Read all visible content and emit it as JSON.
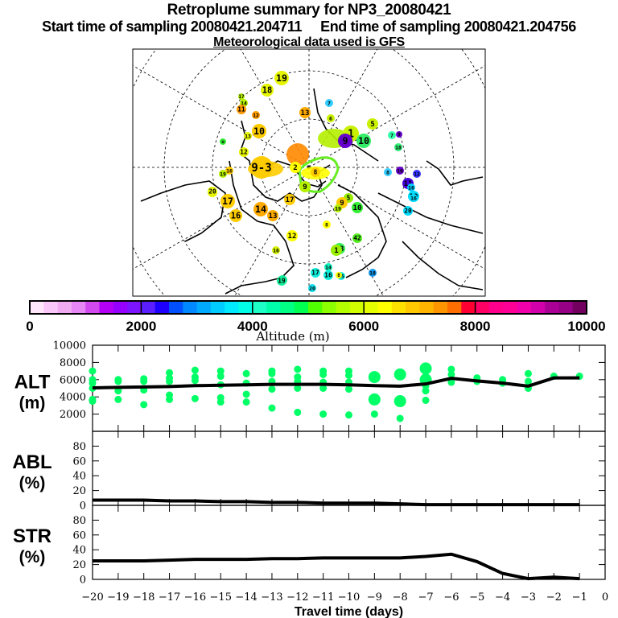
{
  "header": {
    "title": "Retroplume summary for NP3_20080421",
    "subtitle": "Start time of sampling 20080421.204711     End time of sampling 20080421.204756",
    "met_line": "Meteorological data used is GFS"
  },
  "map": {
    "description": "North polar stereographic map with retroplume cluster positions labelled by travel day, colored by altitude",
    "clusters": [
      {
        "label": "19",
        "lon_lat_hint": "N Canada",
        "color": "#e6f500",
        "alt_m": 5800
      },
      {
        "label": "18",
        "color": "#e6f500",
        "alt_m": 5800
      },
      {
        "label": "17",
        "color": "#b4f000",
        "alt_m": 5500
      },
      {
        "label": "14",
        "color": "#b4f000",
        "alt_m": 5500
      },
      {
        "label": "11",
        "color": "#ff9900",
        "alt_m": 7100
      },
      {
        "label": "12",
        "color": "#ff9900",
        "alt_m": 7100
      },
      {
        "label": "13",
        "color": "#ffaa00",
        "alt_m": 7000
      },
      {
        "label": "7",
        "color": "#33ccff",
        "alt_m": 3700
      },
      {
        "label": "6",
        "color": "#c8f000",
        "alt_m": 5700
      },
      {
        "label": "5",
        "color": "#c8f000",
        "alt_m": 5700
      },
      {
        "label": "1",
        "color": "#c8f000",
        "alt_m": 5700
      },
      {
        "label": "10",
        "color": "#33ee66",
        "alt_m": 4700
      },
      {
        "label": "9",
        "color": "#6600cc",
        "alt_m": 1500
      },
      {
        "label": "7",
        "color": "#33ffaa",
        "alt_m": 4300
      },
      {
        "label": "9",
        "color": "#6600cc",
        "alt_m": 1500
      },
      {
        "label": "18",
        "color": "#33ee77",
        "alt_m": 4700
      },
      {
        "label": "8",
        "color": "#33ccff",
        "alt_m": 3700
      },
      {
        "label": "10",
        "color": "#6600cc",
        "alt_m": 1500
      },
      {
        "label": "12",
        "color": "#3333ff",
        "alt_m": 2300
      },
      {
        "label": "11",
        "color": "#4400dd",
        "alt_m": 2000
      },
      {
        "label": "16",
        "color": "#00ccff",
        "alt_m": 3500
      },
      {
        "label": "19",
        "color": "#00ddff",
        "alt_m": 3700
      },
      {
        "label": "16",
        "color": "#00ddff",
        "alt_m": 3700
      },
      {
        "label": "20",
        "color": "#00ddff",
        "alt_m": 3700
      },
      {
        "label": "13",
        "color": "#e6f500",
        "alt_m": 5800
      },
      {
        "label": "10",
        "color": "#ffcc00",
        "alt_m": 6300
      },
      {
        "label": "u",
        "color": "#33ee33",
        "alt_m": 5000
      },
      {
        "label": "12",
        "color": "#e6f500",
        "alt_m": 5800
      },
      {
        "label": "9-3",
        "color": "#ffcc00",
        "alt_m": 6300
      },
      {
        "label": "20",
        "color": "#e6f500",
        "alt_m": 5800
      },
      {
        "label": "2",
        "color": "#ffff00",
        "alt_m": 6000
      },
      {
        "label": "8",
        "color": "#ffcc00",
        "alt_m": 6300
      },
      {
        "label": "9",
        "color": "#b4f000",
        "alt_m": 5500
      },
      {
        "label": "16",
        "color": "#ffcc00",
        "alt_m": 6300
      },
      {
        "label": "19",
        "color": "#b4f000",
        "alt_m": 5500
      },
      {
        "label": "20",
        "color": "#e6f500",
        "alt_m": 5800
      },
      {
        "label": "17",
        "color": "#ffcc00",
        "alt_m": 6300
      },
      {
        "label": "16",
        "color": "#ffcc00",
        "alt_m": 6300
      },
      {
        "label": "14",
        "color": "#ffaa00",
        "alt_m": 6700
      },
      {
        "label": "13",
        "color": "#ffaa00",
        "alt_m": 6700
      },
      {
        "label": "17",
        "color": "#ffcc00",
        "alt_m": 6300
      },
      {
        "label": "12",
        "color": "#ffff00",
        "alt_m": 6000
      },
      {
        "label": "16",
        "color": "#d2f000",
        "alt_m": 5700
      },
      {
        "label": "19",
        "color": "#11ee99",
        "alt_m": 4300
      },
      {
        "label": "5",
        "color": "#99ee00",
        "alt_m": 5300
      },
      {
        "label": "9",
        "color": "#ffcc00",
        "alt_m": 6300
      },
      {
        "label": "19",
        "color": "#b4f000",
        "alt_m": 5500
      },
      {
        "label": "10",
        "color": "#33ee33",
        "alt_m": 5000
      },
      {
        "label": "8",
        "color": "#ffff00",
        "alt_m": 6000
      },
      {
        "label": "42",
        "color": "#55ee22",
        "alt_m": 5100
      },
      {
        "label": "13",
        "color": "#33ee55",
        "alt_m": 4800
      },
      {
        "label": "1",
        "color": "#99ee00",
        "alt_m": 5300
      },
      {
        "label": "14",
        "color": "#11eebb",
        "alt_m": 4200
      },
      {
        "label": "17",
        "color": "#11eedd",
        "alt_m": 4000
      },
      {
        "label": "16",
        "color": "#11eedd",
        "alt_m": 4000
      },
      {
        "label": "15",
        "color": "#11eedd",
        "alt_m": 4000
      },
      {
        "label": "8",
        "color": "#ffff00",
        "alt_m": 6000
      },
      {
        "label": "20",
        "color": "#11ddee",
        "alt_m": 3900
      },
      {
        "label": "18",
        "color": "#1199ee",
        "alt_m": 3000
      },
      {
        "label": "19",
        "color": "#11ee99",
        "alt_m": 4300
      }
    ]
  },
  "colorbar": {
    "label": "Altitude (m)",
    "ticks": [
      "0",
      "2000",
      "4000",
      "6000",
      "8000",
      "10000"
    ],
    "range": [
      0,
      10000
    ],
    "colors": [
      "#ffe6fa",
      "#f9c8f9",
      "#f0aaf0",
      "#e687f5",
      "#d249f0",
      "#b400f5",
      "#9600ff",
      "#7d14ff",
      "#5a1eff",
      "#1e00ff",
      "#0050ff",
      "#0088ff",
      "#00aaff",
      "#00ccff",
      "#00eaff",
      "#00ffe6",
      "#1effc8",
      "#00ffaa",
      "#00ff82",
      "#00ff50",
      "#50ff00",
      "#8cff00",
      "#b4ff00",
      "#d2ff00",
      "#e6ff00",
      "#ffff00",
      "#ffe100",
      "#ffc800",
      "#ffb400",
      "#ff9600",
      "#ff6e00",
      "#ff0032",
      "#ff0064",
      "#ff008c",
      "#ff0096",
      "#f000aa",
      "#d200aa",
      "#aa0096",
      "#960087",
      "#73005f"
    ]
  },
  "chart_data": [
    {
      "type": "scatter",
      "panel": "ALT",
      "ylabel": "ALT\n(m)",
      "ylabel_line1": "ALT",
      "ylabel_line2": "(m)",
      "ylim": [
        0,
        10000
      ],
      "yticks": [
        "10000",
        "8000",
        "6000",
        "4000",
        "2000"
      ],
      "xlim": [
        -20,
        0
      ],
      "marker_color": "#00ff66",
      "mean_line": {
        "x": [
          -20,
          -19,
          -18,
          -17,
          -16,
          -15,
          -14,
          -13,
          -12,
          -11,
          -10,
          -9,
          -8,
          -7,
          -6,
          -5,
          -4,
          -3,
          -2,
          -1
        ],
        "y": [
          5050,
          5100,
          5150,
          5200,
          5300,
          5350,
          5400,
          5450,
          5450,
          5450,
          5400,
          5300,
          5250,
          5500,
          6150,
          5850,
          5600,
          5250,
          6200,
          6200
        ]
      },
      "points": [
        {
          "x": -20,
          "y": [
            7000,
            6000,
            5600,
            5000,
            3700,
            3500
          ]
        },
        {
          "x": -19,
          "y": [
            6000,
            5800,
            4700,
            3700
          ]
        },
        {
          "x": -18,
          "y": [
            6100,
            5800,
            4800,
            3100
          ]
        },
        {
          "x": -17,
          "y": [
            6800,
            6200,
            5800,
            4200,
            3700
          ]
        },
        {
          "x": -16,
          "y": [
            7100,
            6300,
            5900,
            3800
          ]
        },
        {
          "x": -15,
          "y": [
            7000,
            6400,
            5400,
            3900,
            3400
          ]
        },
        {
          "x": -14,
          "y": [
            6700,
            5600,
            4300,
            3400
          ]
        },
        {
          "x": -13,
          "y": [
            7000,
            6700,
            5800,
            4900,
            2700
          ]
        },
        {
          "x": -12,
          "y": [
            7200,
            6300,
            5800,
            5000,
            2200
          ]
        },
        {
          "x": -11,
          "y": [
            7000,
            6600,
            5700,
            5000,
            2000
          ]
        },
        {
          "x": -10,
          "y": [
            7000,
            6500,
            5700,
            4900,
            1900
          ]
        },
        {
          "x": -9,
          "y": [
            6300,
            3700,
            2000
          ]
        },
        {
          "x": -8,
          "y": [
            6600,
            3500,
            1500
          ]
        },
        {
          "x": -7,
          "y": [
            7300,
            6000,
            5300,
            4700,
            3600
          ]
        },
        {
          "x": -6,
          "y": [
            7200,
            6600,
            5700
          ]
        },
        {
          "x": -5,
          "y": [
            6200,
            5800
          ]
        },
        {
          "x": -4,
          "y": [
            6000,
            5600
          ]
        },
        {
          "x": -3,
          "y": [
            6700,
            5800,
            5000
          ]
        },
        {
          "x": -2,
          "y": [
            6400
          ]
        },
        {
          "x": -1,
          "y": [
            6400
          ]
        }
      ]
    },
    {
      "type": "line",
      "panel": "ABL",
      "ylabel_line1": "ABL",
      "ylabel_line2": "(%)",
      "ylim": [
        0,
        100
      ],
      "yticks": [
        "80",
        "60",
        "40",
        "20",
        "0"
      ],
      "xlim": [
        -20,
        0
      ],
      "x": [
        -20,
        -19,
        -18,
        -17,
        -16,
        -15,
        -14,
        -13,
        -12,
        -11,
        -10,
        -9,
        -8,
        -7,
        -6,
        -5,
        -4,
        -3,
        -2,
        -1
      ],
      "y": [
        7,
        7,
        7,
        6,
        6,
        5,
        5,
        4,
        4,
        3,
        3,
        3,
        2,
        1,
        1,
        1,
        1,
        1,
        1,
        1
      ]
    },
    {
      "type": "line",
      "panel": "STR",
      "ylabel_line1": "STR",
      "ylabel_line2": "(%)",
      "ylim": [
        0,
        100
      ],
      "yticks": [
        "80",
        "60",
        "40",
        "20",
        "0"
      ],
      "xlim": [
        -20,
        0
      ],
      "xlabel": "Travel time (days)",
      "xticks": [
        "−20",
        "−19",
        "−18",
        "−17",
        "−16",
        "−15",
        "−14",
        "−13",
        "−12",
        "−11",
        "−10",
        "−9",
        "−8",
        "−7",
        "−6",
        "−5",
        "−4",
        "−3",
        "−2",
        "−1",
        "0"
      ],
      "x": [
        -20,
        -19,
        -18,
        -17,
        -16,
        -15,
        -14,
        -13,
        -12,
        -11,
        -10,
        -9,
        -8,
        -7,
        -6,
        -5,
        -4,
        -3,
        -2,
        -1
      ],
      "y": [
        25,
        25,
        25,
        26,
        27,
        27,
        27,
        28,
        28,
        29,
        29,
        29,
        29,
        31,
        34,
        24,
        8,
        1,
        3,
        1
      ]
    }
  ]
}
